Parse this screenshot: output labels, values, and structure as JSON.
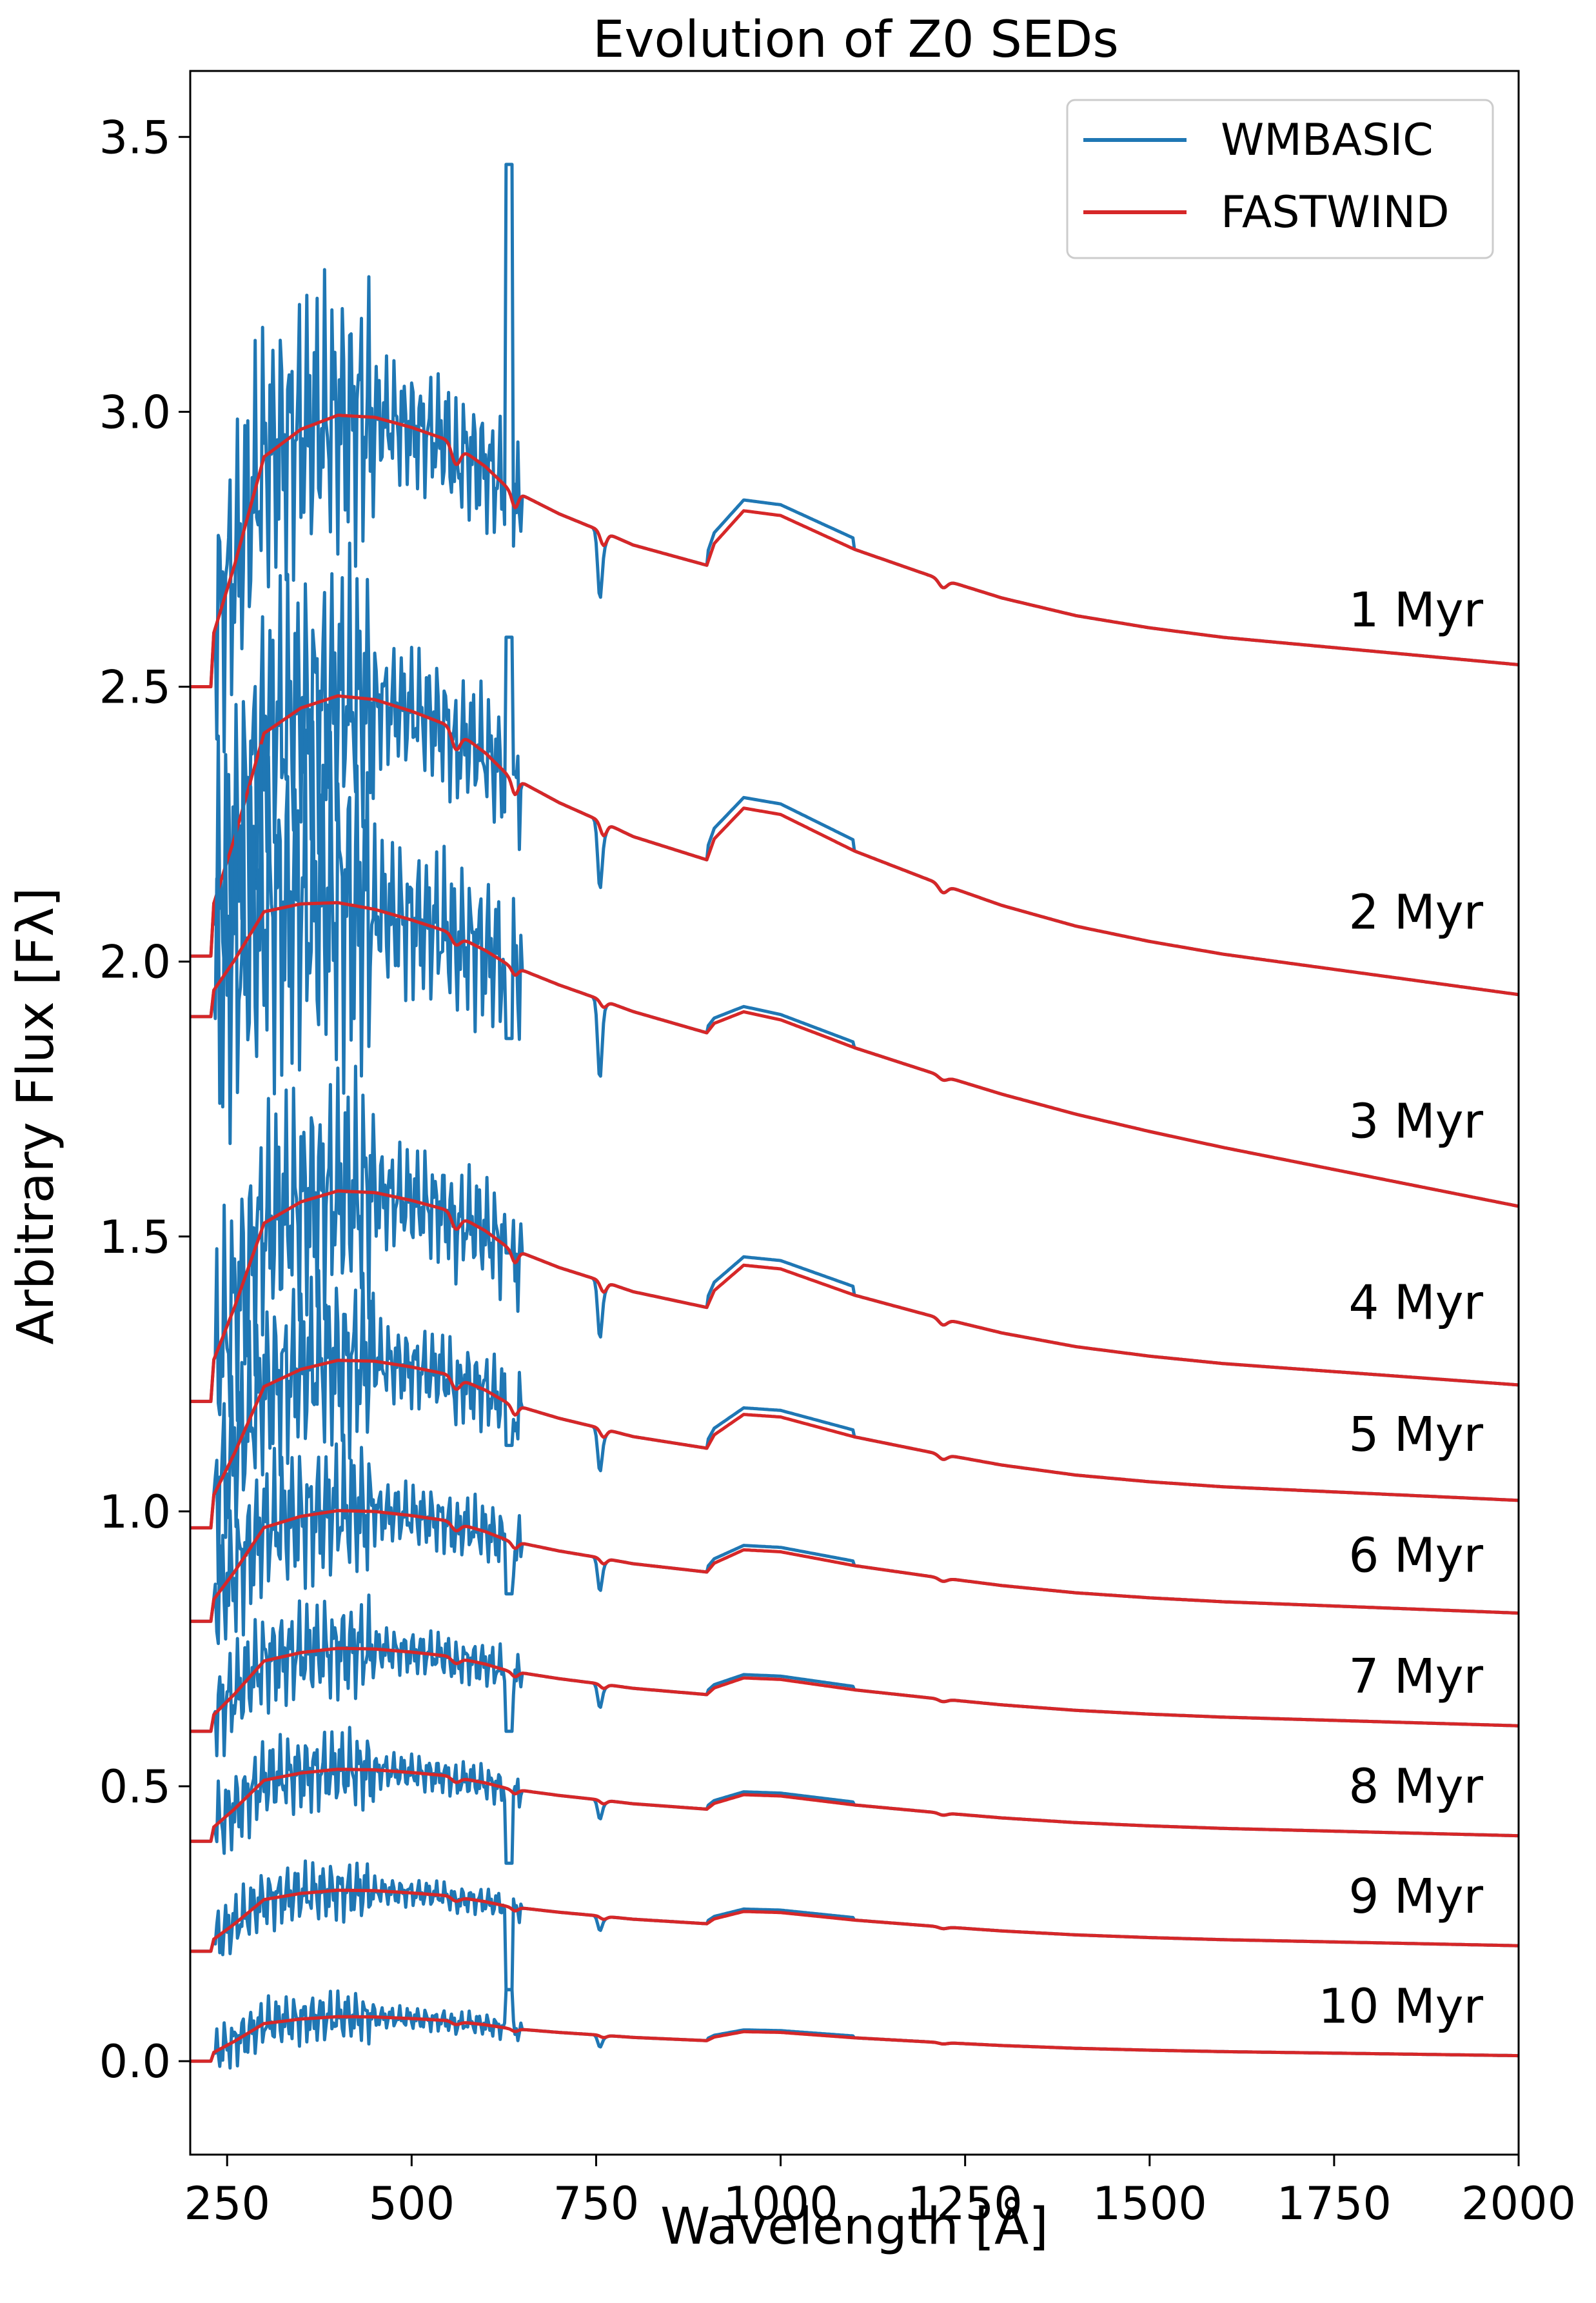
{
  "chart_data": {
    "type": "line",
    "title": "Evolution of Z0 SEDs",
    "xlabel": "Wavelength [Å]",
    "ylabel": "Arbitrary Flux [Fλ]",
    "xlim": [
      200,
      2000
    ],
    "ylim": [
      -0.17,
      3.62
    ],
    "xticks": [
      250,
      500,
      750,
      1000,
      1250,
      1500,
      1750,
      2000
    ],
    "yticks": [
      0.0,
      0.5,
      1.0,
      1.5,
      2.0,
      2.5,
      3.0,
      3.5
    ],
    "xtick_labels": [
      "250",
      "500",
      "750",
      "1000",
      "1250",
      "1500",
      "1750",
      "2000"
    ],
    "ytick_labels": [
      "0.0",
      "0.5",
      "1.0",
      "1.5",
      "2.0",
      "2.5",
      "3.0",
      "3.5"
    ],
    "legend": {
      "location": "top-right",
      "entries": [
        {
          "label": "WMBASIC",
          "color": "#1f77b4"
        },
        {
          "label": "FASTWIND",
          "color": "#d62728"
        }
      ]
    },
    "profile_x": [
      200,
      228,
      232,
      260,
      300,
      350,
      400,
      450,
      500,
      550,
      600,
      630,
      700,
      760,
      800,
      900,
      910,
      950,
      1000,
      1100,
      1200,
      1300,
      1400,
      1500,
      1600,
      1700,
      1800,
      1900,
      2000
    ],
    "profile_shape": [
      0,
      0,
      0.2,
      0.45,
      0.85,
      0.95,
      1.0,
      0.99,
      0.95,
      0.9,
      0.8,
      0.72,
      0.62,
      0.55,
      0.5,
      0.42,
      0.5,
      0.62,
      0.6,
      0.47,
      0.37,
      0.28,
      0.21,
      0.16,
      0.12,
      0.09,
      0.06,
      0.03,
      0.0
    ],
    "blue_color": "#1f77b4",
    "red_color": "#d62728",
    "ages": [
      {
        "label": "1 Myr",
        "base": 2.5,
        "end": 2.54,
        "amp": 0.49,
        "noise": 0.28,
        "spike": 3.45,
        "label_y": 2.61
      },
      {
        "label": "2 Myr",
        "base": 2.01,
        "end": 1.94,
        "amp": 0.48,
        "noise": 0.28,
        "spike": 2.59,
        "label_y": 2.06
      },
      {
        "label": "3 Myr",
        "base": 1.9,
        "end": 1.555,
        "amp": 0.24,
        "noise": 0.35,
        "spike": 1.86,
        "label_y": 1.68
      },
      {
        "label": "4 Myr",
        "base": 1.2,
        "end": 1.23,
        "amp": 0.38,
        "noise": 0.24,
        "spike": 1.47,
        "label_y": 1.35
      },
      {
        "label": "5 Myr",
        "base": 0.97,
        "end": 1.02,
        "amp": 0.3,
        "noise": 0.18,
        "spike": 1.12,
        "label_y": 1.11
      },
      {
        "label": "6 Myr",
        "base": 0.8,
        "end": 0.815,
        "amp": 0.2,
        "noise": 0.14,
        "spike": 0.85,
        "label_y": 0.89
      },
      {
        "label": "7 Myr",
        "base": 0.6,
        "end": 0.61,
        "amp": 0.15,
        "noise": 0.1,
        "spike": 0.6,
        "label_y": 0.67
      },
      {
        "label": "8 Myr",
        "base": 0.4,
        "end": 0.41,
        "amp": 0.13,
        "noise": 0.08,
        "spike": 0.36,
        "label_y": 0.47
      },
      {
        "label": "9 Myr",
        "base": 0.2,
        "end": 0.21,
        "amp": 0.11,
        "noise": 0.06,
        "spike": 0.13,
        "label_y": 0.27
      },
      {
        "label": "10 Myr",
        "base": 0.0,
        "end": 0.01,
        "amp": 0.08,
        "noise": 0.05,
        "spike": 0.13,
        "label_y": 0.07
      }
    ]
  }
}
